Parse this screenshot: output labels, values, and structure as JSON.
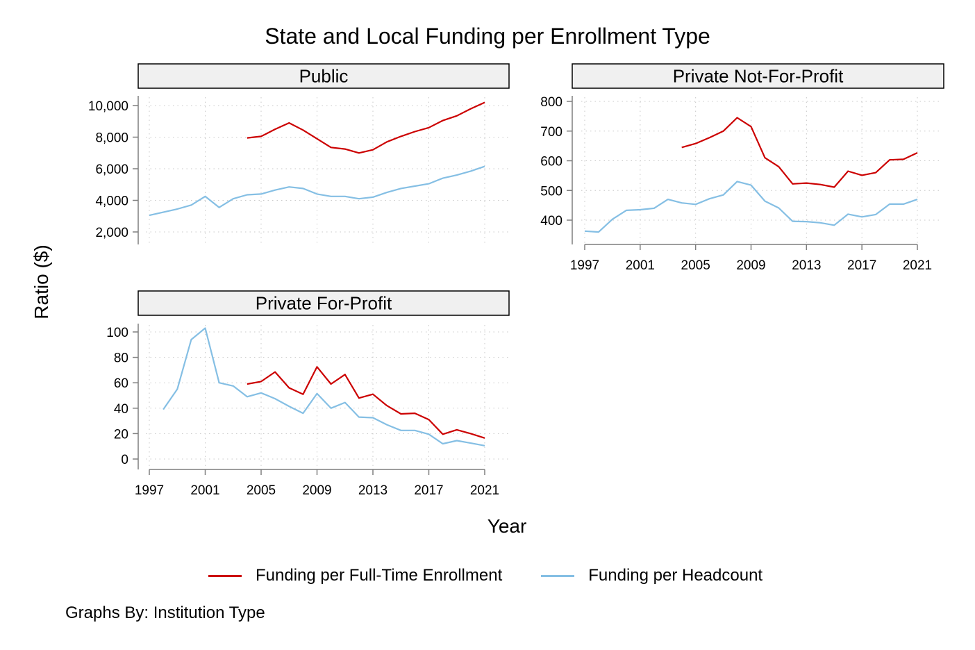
{
  "figure": {
    "title": "State and Local Funding per Enrollment Type",
    "ylabel": "Ratio ($)",
    "xlabel": "Year",
    "note": "Graphs By: Institution Type",
    "legend": [
      {
        "label": "Funding per Full-Time Enrollment",
        "color": "#cc0000"
      },
      {
        "label": "Funding per Headcount",
        "color": "#85bfe4"
      }
    ]
  },
  "chart_data": [
    {
      "type": "line",
      "title": "Public",
      "xlim": [
        1997,
        2021
      ],
      "x_ticks": [
        1997,
        2001,
        2005,
        2009,
        2013,
        2017,
        2021
      ],
      "y_ticks": [
        2000,
        4000,
        6000,
        8000,
        10000
      ],
      "y_tick_labels": [
        "2,000",
        "4,000",
        "6,000",
        "8,000",
        "10,000"
      ],
      "ylim": [
        1200,
        10500
      ],
      "show_x_axis": false,
      "grid": true,
      "series": [
        {
          "name": "Funding per Full-Time Enrollment",
          "color": "#cc0000",
          "x": [
            2004,
            2005,
            2006,
            2007,
            2008,
            2009,
            2010,
            2011,
            2012,
            2013,
            2014,
            2015,
            2016,
            2017,
            2018,
            2019,
            2020,
            2021
          ],
          "y": [
            7950,
            8050,
            8500,
            8900,
            8450,
            7900,
            7350,
            7250,
            7000,
            7200,
            7700,
            8050,
            8350,
            8600,
            9050,
            9350,
            9800,
            10200
          ]
        },
        {
          "name": "Funding per Headcount",
          "color": "#85bfe4",
          "x": [
            1997,
            1998,
            1999,
            2000,
            2001,
            2002,
            2003,
            2004,
            2005,
            2006,
            2007,
            2008,
            2009,
            2010,
            2011,
            2012,
            2013,
            2014,
            2015,
            2016,
            2017,
            2018,
            2019,
            2020,
            2021
          ],
          "y": [
            3050,
            3250,
            3450,
            3700,
            4250,
            3550,
            4100,
            4350,
            4400,
            4650,
            4850,
            4750,
            4400,
            4250,
            4250,
            4100,
            4200,
            4500,
            4750,
            4900,
            5050,
            5400,
            5600,
            5850,
            6150
          ]
        }
      ]
    },
    {
      "type": "line",
      "title": "Private Not-For-Profit",
      "xlim": [
        1997,
        2021
      ],
      "x_ticks": [
        1997,
        2001,
        2005,
        2009,
        2013,
        2017,
        2021
      ],
      "y_ticks": [
        400,
        500,
        600,
        700,
        800
      ],
      "y_tick_labels": [
        "400",
        "500",
        "600",
        "700",
        "800"
      ],
      "ylim": [
        355,
        805
      ],
      "show_x_axis": true,
      "grid": true,
      "series": [
        {
          "name": "Funding per Full-Time Enrollment",
          "color": "#cc0000",
          "x": [
            2004,
            2005,
            2006,
            2007,
            2008,
            2009,
            2010,
            2011,
            2012,
            2013,
            2014,
            2015,
            2016,
            2017,
            2018,
            2019,
            2020,
            2021
          ],
          "y": [
            645,
            658,
            678,
            700,
            745,
            715,
            610,
            580,
            522,
            525,
            520,
            511,
            565,
            551,
            560,
            603,
            605,
            627
          ]
        },
        {
          "name": "Funding per Headcount",
          "color": "#85bfe4",
          "x": [
            1997,
            1998,
            1999,
            2000,
            2001,
            2002,
            2003,
            2004,
            2005,
            2006,
            2007,
            2008,
            2009,
            2010,
            2011,
            2012,
            2013,
            2014,
            2015,
            2016,
            2017,
            2018,
            2019,
            2020,
            2021
          ],
          "y": [
            363,
            360,
            403,
            433,
            435,
            440,
            470,
            458,
            453,
            472,
            485,
            530,
            518,
            464,
            441,
            396,
            395,
            391,
            383,
            420,
            411,
            419,
            454,
            454,
            470
          ]
        }
      ]
    },
    {
      "type": "line",
      "title": "Private For-Profit",
      "xlim": [
        1997,
        2021
      ],
      "x_ticks": [
        1997,
        2001,
        2005,
        2009,
        2013,
        2017,
        2021
      ],
      "y_ticks": [
        0,
        20,
        40,
        60,
        80,
        100
      ],
      "y_tick_labels": [
        "0",
        "20",
        "40",
        "60",
        "80",
        "100"
      ],
      "ylim": [
        -5,
        102
      ],
      "show_x_axis": true,
      "grid": true,
      "series": [
        {
          "name": "Funding per Full-Time Enrollment",
          "color": "#cc0000",
          "x": [
            2004,
            2005,
            2006,
            2007,
            2008,
            2009,
            2010,
            2011,
            2012,
            2013,
            2014,
            2015,
            2016,
            2017,
            2018,
            2019,
            2020,
            2021
          ],
          "y": [
            59,
            61,
            68.5,
            56,
            51,
            72.5,
            59,
            66.5,
            48,
            51,
            42,
            35.5,
            36,
            31,
            19.5,
            23,
            20,
            16.5
          ]
        },
        {
          "name": "Funding per Headcount",
          "color": "#85bfe4",
          "x": [
            1998,
            1999,
            2000,
            2001,
            2002,
            2003,
            2004,
            2005,
            2006,
            2007,
            2008,
            2009,
            2010,
            2011,
            2012,
            2013,
            2014,
            2015,
            2016,
            2017,
            2018,
            2019,
            2020,
            2021
          ],
          "y": [
            39,
            55,
            94,
            103,
            60,
            57.5,
            49,
            52,
            47.5,
            41.5,
            36,
            51.5,
            40,
            44.5,
            33,
            32.5,
            27,
            22.5,
            22.5,
            19.5,
            12,
            14.5,
            12.5,
            10.5
          ]
        }
      ]
    }
  ]
}
